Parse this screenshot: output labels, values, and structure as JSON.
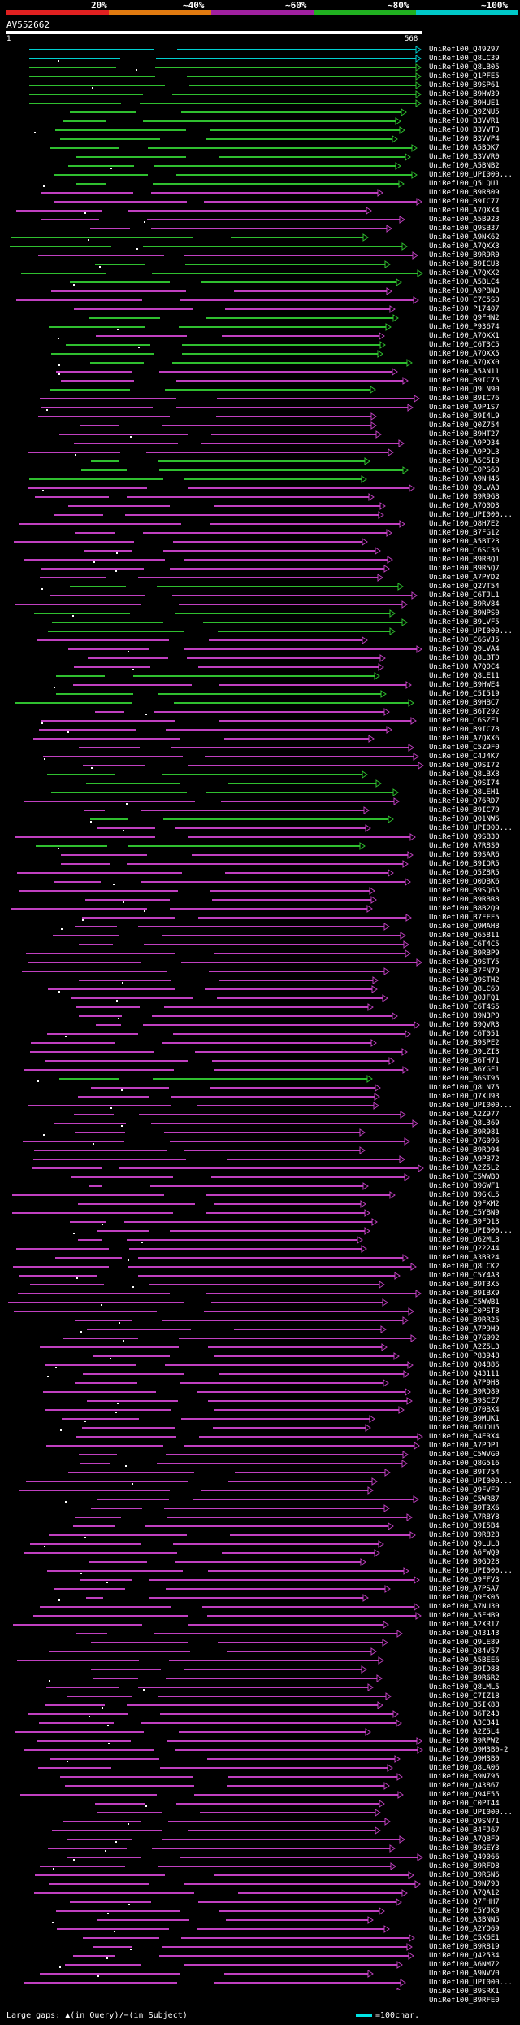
{
  "legend": {
    "labels": [
      "20%",
      "~40%",
      "~60%",
      "~80%",
      "~100%"
    ],
    "colors": [
      "#e02020",
      "#e07a10",
      "#a020a0",
      "#20b020",
      "#00c8c8"
    ]
  },
  "query": {
    "id": "AV552662",
    "start": "1",
    "end": "568"
  },
  "colors": {
    "cyan": "#00d0d0",
    "green": "#2fbf2f",
    "magenta": "#c040c0",
    "black": "#000000"
  },
  "hits": [
    "UniRef100_Q49297",
    "UniRef100_Q8LC39",
    "UniRef100_Q8LB05",
    "UniRef100_Q1PFE5",
    "UniRef100_B9SP61",
    "UniRef100_B9HW39",
    "UniRef100_B9HUE1",
    "UniRef100_Q9ZNU5",
    "UniRef100_B3VVR1",
    "UniRef100_B3VVT0",
    "UniRef100_B3VVP4",
    "UniRef100_A5BDK7",
    "UniRef100_B3VVR0",
    "UniRef100_A5BNB2",
    "UniRef100_UPI000...",
    "UniRef100_Q5LQU1",
    "UniRef100_B9R809",
    "UniRef100_B9IC77",
    "UniRef100_A7QXX4",
    "UniRef100_A5B923",
    "UniRef100_Q9SB37",
    "UniRef100_A9NK62",
    "UniRef100_A7QXX3",
    "UniRef100_B9R9R0",
    "UniRef100_B9ICU3",
    "UniRef100_A7QXX2",
    "UniRef100_A5BLC4",
    "UniRef100_A9PBN0",
    "UniRef100_C7C5S0",
    "UniRef100_P17407",
    "UniRef100_Q9FHN2",
    "UniRef100_P93674",
    "UniRef100_A7QXX1",
    "UniRef100_C6T3C5",
    "UniRef100_A7QXX5",
    "UniRef100_A7QXX0",
    "UniRef100_A5AN11",
    "UniRef100_B9IC75",
    "UniRef100_Q9LN90",
    "UniRef100_B9IC76",
    "UniRef100_A9P1S7",
    "UniRef100_B9I4L9",
    "UniRef100_Q0Z754",
    "UniRef100_B9HT27",
    "UniRef100_A9PD34",
    "UniRef100_A9PDL3",
    "UniRef100_A5C5I9",
    "UniRef100_C0PS60",
    "UniRef100_A9NH46",
    "UniRef100_Q9LVA3",
    "UniRef100_B9R9G8",
    "UniRef100_A7Q0D3",
    "UniRef100_UPI000...",
    "UniRef100_Q8H7E2",
    "UniRef100_B7FG12",
    "UniRef100_A5BT23",
    "UniRef100_C6SC36",
    "UniRef100_B9RBQ1",
    "UniRef100_B9R5Q7",
    "UniRef100_A7PYD2",
    "UniRef100_Q2VT54",
    "UniRef100_C6TJL1",
    "UniRef100_B9RV84",
    "UniRef100_B9NPS0",
    "UniRef100_B9LVF5",
    "UniRef100_UPI000...",
    "UniRef100_C6SVJ5",
    "UniRef100_Q9LVA4",
    "UniRef100_Q8LBT0",
    "UniRef100_A7Q0C4",
    "UniRef100_Q8LE11",
    "UniRef100_B9HWE4",
    "UniRef100_C5I519",
    "UniRef100_B9HBC7",
    "UniRef100_B6T292",
    "UniRef100_C6SZF1",
    "UniRef100_B9IC78",
    "UniRef100_A7QXX6",
    "UniRef100_C5Z9F0",
    "UniRef100_C4J4K7",
    "UniRef100_Q9SI72",
    "UniRef100_Q8LBX8",
    "UniRef100_Q9SI74",
    "UniRef100_Q8LEH1",
    "UniRef100_Q76RD7",
    "UniRef100_B9IC79",
    "UniRef100_Q01NW6",
    "UniRef100_UPI000...",
    "UniRef100_Q9SB30",
    "UniRef100_A7R8S0",
    "UniRef100_B9SAR6",
    "UniRef100_B9IQR5",
    "UniRef100_Q5Z8R5",
    "UniRef100_Q0DBK6",
    "UniRef100_B9SQG5",
    "UniRef100_B9RBR8",
    "UniRef100_B8B2Q9",
    "UniRef100_B7FFF5",
    "UniRef100_Q9MAH8",
    "UniRef100_Q65811",
    "UniRef100_C6T4C5",
    "UniRef100_B9RBP9",
    "UniRef100_Q9STY5",
    "UniRef100_B7FN79",
    "UniRef100_Q9STH2",
    "UniRef100_Q8LC60",
    "UniRef100_Q0JFQ1",
    "UniRef100_C6T4S5",
    "UniRef100_B9N3P0",
    "UniRef100_B9QVR3",
    "UniRef100_C6T051",
    "UniRef100_B9SPE2",
    "UniRef100_Q9LZI3",
    "UniRef100_B6TH71",
    "UniRef100_A6YGF1",
    "UniRef100_B6ST95",
    "UniRef100_Q8LN75",
    "UniRef100_Q7XU93",
    "UniRef100_UPI000...",
    "UniRef100_A2Z977",
    "UniRef100_Q8L369",
    "UniRef100_B9R981",
    "UniRef100_Q7G096",
    "UniRef100_B9RD94",
    "UniRef100_A9PB72",
    "UniRef100_A2Z5L2",
    "UniRef100_C5WWB0",
    "UniRef100_B9GWF1",
    "UniRef100_B9GKL5",
    "UniRef100_Q9FXM2",
    "UniRef100_C5YBN9",
    "UniRef100_B9FD13",
    "UniRef100_UPI000...",
    "UniRef100_Q62ML8",
    "UniRef100_Q22244",
    "UniRef100_A3BR24",
    "UniRef100_Q8LCK2",
    "UniRef100_C5Y4A3",
    "UniRef100_B9T3X5",
    "UniRef100_B9IBX9",
    "UniRef100_C5WWB1",
    "UniRef100_C0PST8",
    "UniRef100_B9RR25",
    "UniRef100_A7P9H9",
    "UniRef100_Q7G092",
    "UniRef100_A2Z5L3",
    "UniRef100_P83948",
    "UniRef100_Q04886",
    "UniRef100_Q43111",
    "UniRef100_A7P9H8",
    "UniRef100_B9RD89",
    "UniRef100_B9SCZ7",
    "UniRef100_Q70BX4",
    "UniRef100_B9MUK1",
    "UniRef100_B6UDU5",
    "UniRef100_B4ERX4",
    "UniRef100_A7PDP1",
    "UniRef100_C5WVG0",
    "UniRef100_Q8G516",
    "UniRef100_B9T754",
    "UniRef100_UPI000...",
    "UniRef100_Q9FVF9",
    "UniRef100_C5WRB7",
    "UniRef100_B9T3X6",
    "UniRef100_A7R8Y8",
    "UniRef100_B9I5B4",
    "UniRef100_B9R828",
    "UniRef100_Q9LUL8",
    "UniRef100_A6FWQ9",
    "UniRef100_B9GD28",
    "UniRef100_UPI000...",
    "UniRef100_Q9FFV3",
    "UniRef100_A7PSA7",
    "UniRef100_Q9FK05",
    "UniRef100_A7NU30",
    "UniRef100_A5FHB9",
    "UniRef100_A2XR17",
    "UniRef100_Q43143",
    "UniRef100_Q9LE89",
    "UniRef100_Q84V57",
    "UniRef100_A5BEE6",
    "UniRef100_B9ID88",
    "UniRef100_B9R6R2",
    "UniRef100_Q8LML5",
    "UniRef100_C7IZ18",
    "UniRef100_B5IK88",
    "UniRef100_B6T243",
    "UniRef100_A3C341",
    "UniRef100_A2Z5L4",
    "UniRef100_B9RPW2",
    "UniRef100_Q9M3B0-2",
    "UniRef100_Q9M3B0",
    "UniRef100_Q8LA06",
    "UniRef100_B9N795",
    "UniRef100_Q43867",
    "UniRef100_Q94F55",
    "UniRef100_C0PT44",
    "UniRef100_UPI000...",
    "UniRef100_Q9SN71",
    "UniRef100_B4FJ67",
    "UniRef100_A7QBF9",
    "UniRef100_B9GEY3",
    "UniRef100_Q49066",
    "UniRef100_B9RFD8",
    "UniRef100_B9RSN6",
    "UniRef100_B9N793",
    "UniRef100_A7QA12",
    "UniRef100_Q7FHH7",
    "UniRef100_C5YJK9",
    "UniRef100_A3BNN5",
    "UniRef100_A2YQ69",
    "UniRef100_C5X6E1",
    "UniRef100_B9R819",
    "UniRef100_Q42534",
    "UniRef100_A6NM72",
    "UniRef100_A9NVV0",
    "UniRef100_UPI000...",
    "UniRef100_B9SRK1",
    "UniRef100_B9RFE0"
  ],
  "footer": {
    "left": "Large gaps: ▲(in Query)/−(in Subject)",
    "right": "=100char."
  }
}
